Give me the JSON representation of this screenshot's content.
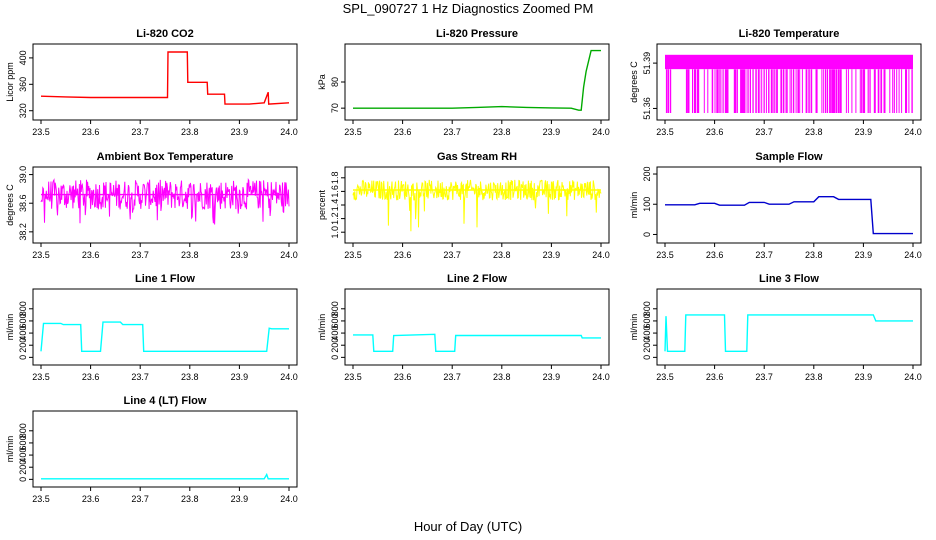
{
  "figure": {
    "title": "SPL_090727  1 Hz Diagnostics Zoomed PM",
    "xlabel": "Hour of Day (UTC)"
  },
  "chart_data": [
    {
      "type": "line",
      "title": "Li-820 CO2",
      "xlabel": "",
      "ylabel": "Licor ppm",
      "color": "#ff0000",
      "xlim": [
        23.5,
        24.0
      ],
      "ylim": [
        312,
        415
      ],
      "xticks": [
        "23.5",
        "23.6",
        "23.7",
        "23.8",
        "23.9",
        "24.0"
      ],
      "yticks": [
        "320",
        "360",
        "400"
      ],
      "series": [
        {
          "x": [
            23.5,
            23.55,
            23.6,
            23.65,
            23.7,
            23.755,
            23.756,
            23.795,
            23.796,
            23.835,
            23.836,
            23.87,
            23.871,
            23.92,
            23.95,
            23.958,
            23.959,
            24.0
          ],
          "y": [
            342,
            341,
            340,
            340,
            340,
            340,
            409,
            409,
            363,
            363,
            345,
            345,
            330,
            330,
            332,
            348,
            330,
            332
          ]
        }
      ]
    },
    {
      "type": "line",
      "title": "Li-820 Pressure",
      "xlabel": "",
      "ylabel": "kPa",
      "color": "#00aa00",
      "xlim": [
        23.5,
        24.0
      ],
      "ylim": [
        67,
        93
      ],
      "xticks": [
        "23.5",
        "23.6",
        "23.7",
        "23.8",
        "23.9",
        "24.0"
      ],
      "yticks": [
        "70",
        "80"
      ],
      "series": [
        {
          "x": [
            23.5,
            23.6,
            23.7,
            23.75,
            23.8,
            23.85,
            23.9,
            23.94,
            23.955,
            23.96,
            23.965,
            23.97,
            23.98,
            24.0
          ],
          "y": [
            70,
            70,
            70,
            70.3,
            70.6,
            70.3,
            70.1,
            70,
            69.2,
            69.2,
            78,
            84,
            92,
            92
          ]
        }
      ]
    },
    {
      "type": "line",
      "title": "Li-820 Temperature",
      "xlabel": "",
      "ylabel": "degrees C",
      "color": "#ff00ff",
      "xlim": [
        23.5,
        24.0
      ],
      "ylim": [
        51.355,
        51.4
      ],
      "xticks": [
        "23.5",
        "23.6",
        "23.7",
        "23.8",
        "23.9",
        "24.0"
      ],
      "yticks": [
        "51.36",
        "51.39"
      ],
      "series": [
        {
          "x": [
            23.5,
            24.0
          ],
          "y": [
            51.393,
            51.393
          ]
        }
      ]
    },
    {
      "type": "line",
      "title": "Ambient Box Temperature",
      "xlabel": "",
      "ylabel": "degrees C",
      "color": "#ff00ff",
      "xlim": [
        23.5,
        24.0
      ],
      "ylim": [
        38.1,
        39.05
      ],
      "xticks": [
        "23.5",
        "23.6",
        "23.7",
        "23.8",
        "23.9",
        "24.0"
      ],
      "yticks": [
        "38.2",
        "38.6",
        "39.0"
      ],
      "series": [
        {
          "x": [
            23.5,
            24.0
          ],
          "y": [
            38.72,
            38.72
          ]
        }
      ]
    },
    {
      "type": "line",
      "title": "Gas Stream RH",
      "xlabel": "",
      "ylabel": "percent",
      "color": "#ffff00",
      "xlim": [
        23.5,
        24.0
      ],
      "ylim": [
        0.9,
        1.9
      ],
      "xticks": [
        "23.5",
        "23.6",
        "23.7",
        "23.8",
        "23.9",
        "24.0"
      ],
      "yticks": [
        "1.0",
        "1.2",
        "1.4",
        "1.6",
        "1.8"
      ],
      "series": [
        {
          "x": [
            23.5,
            24.0
          ],
          "y": [
            1.62,
            1.62
          ]
        }
      ]
    },
    {
      "type": "line",
      "title": "Sample Flow",
      "xlabel": "",
      "ylabel": "ml/min",
      "color": "#0000cc",
      "xlim": [
        23.5,
        24.0
      ],
      "ylim": [
        -15,
        210
      ],
      "xticks": [
        "23.5",
        "23.6",
        "23.7",
        "23.8",
        "23.9",
        "24.0"
      ],
      "yticks": [
        "0",
        "100",
        "200"
      ],
      "series": [
        {
          "x": [
            23.5,
            23.56,
            23.57,
            23.6,
            23.61,
            23.66,
            23.67,
            23.7,
            23.71,
            23.75,
            23.76,
            23.8,
            23.81,
            23.84,
            23.85,
            23.915,
            23.92,
            23.95,
            24.0
          ],
          "y": [
            98,
            98,
            103,
            103,
            97,
            97,
            106,
            106,
            100,
            100,
            108,
            108,
            125,
            125,
            116,
            116,
            3,
            3,
            3
          ]
        }
      ]
    },
    {
      "type": "line",
      "title": "Line 1 Flow",
      "xlabel": "",
      "ylabel": "ml/min",
      "color": "#00ffff",
      "xlim": [
        23.5,
        24.0
      ],
      "ylim": [
        -60,
        1060
      ],
      "xticks": [
        "23.5",
        "23.6",
        "23.7",
        "23.8",
        "23.9",
        "24.0"
      ],
      "yticks": [
        "0",
        "200",
        "400",
        "600",
        "800"
      ],
      "series": [
        {
          "x": [
            23.5,
            23.505,
            23.54,
            23.545,
            23.58,
            23.582,
            23.62,
            23.625,
            23.66,
            23.665,
            23.705,
            23.707,
            23.955,
            23.96,
            23.965,
            24.0
          ],
          "y": [
            100,
            560,
            560,
            540,
            540,
            100,
            100,
            580,
            580,
            540,
            540,
            100,
            100,
            480,
            470,
            470
          ]
        }
      ]
    },
    {
      "type": "line",
      "title": "Line 2 Flow",
      "xlabel": "",
      "ylabel": "ml/min",
      "color": "#00ffff",
      "xlim": [
        23.5,
        24.0
      ],
      "ylim": [
        -60,
        1060
      ],
      "xticks": [
        "23.5",
        "23.6",
        "23.7",
        "23.8",
        "23.9",
        "24.0"
      ],
      "yticks": [
        "0",
        "200",
        "400",
        "600",
        "800"
      ],
      "series": [
        {
          "x": [
            23.5,
            23.54,
            23.542,
            23.58,
            23.582,
            23.665,
            23.667,
            23.705,
            23.707,
            23.96,
            23.962,
            24.0
          ],
          "y": [
            370,
            370,
            100,
            100,
            360,
            380,
            100,
            100,
            360,
            360,
            320,
            320
          ]
        }
      ]
    },
    {
      "type": "line",
      "title": "Line 3 Flow",
      "xlabel": "",
      "ylabel": "ml/min",
      "color": "#00ffff",
      "xlim": [
        23.5,
        24.0
      ],
      "ylim": [
        -60,
        1060
      ],
      "xticks": [
        "23.5",
        "23.6",
        "23.7",
        "23.8",
        "23.9",
        "24.0"
      ],
      "yticks": [
        "0",
        "200",
        "400",
        "600",
        "800"
      ],
      "series": [
        {
          "x": [
            23.5,
            23.502,
            23.505,
            23.54,
            23.542,
            23.62,
            23.622,
            23.665,
            23.667,
            23.92,
            23.925,
            24.0
          ],
          "y": [
            100,
            680,
            100,
            100,
            700,
            700,
            100,
            100,
            700,
            700,
            600,
            600
          ]
        }
      ]
    },
    {
      "type": "line",
      "title": "Line 4 (LT) Flow",
      "xlabel": "",
      "ylabel": "ml/min",
      "color": "#00ffff",
      "xlim": [
        23.5,
        24.0
      ],
      "ylim": [
        -60,
        1060
      ],
      "xticks": [
        "23.5",
        "23.6",
        "23.7",
        "23.8",
        "23.9",
        "24.0"
      ],
      "yticks": [
        "0",
        "200",
        "400",
        "600",
        "800"
      ],
      "series": [
        {
          "x": [
            23.5,
            23.95,
            23.955,
            23.958,
            23.96,
            24.0
          ],
          "y": [
            10,
            10,
            80,
            10,
            10,
            10
          ]
        }
      ]
    }
  ]
}
